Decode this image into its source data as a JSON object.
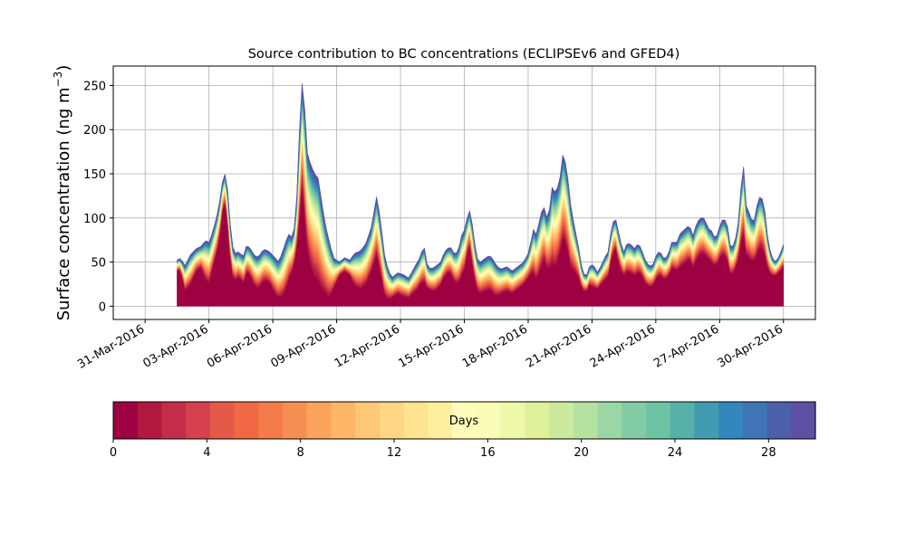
{
  "chart_data": {
    "type": "area",
    "title": "Source contribution to BC concentrations (ECLIPSEv6 and GFED4)",
    "ylabel": "Surface concentration (ng m⁻³)",
    "ylabel_parts": {
      "base": "Surface concentration (ng m",
      "superscript": "−3",
      "close": ")"
    },
    "xlabel": "",
    "x_range_days": [
      -1.5,
      31.5
    ],
    "x_start_day": 1.5,
    "x_end_day": 30.0,
    "x_step_days": 0.125,
    "ylim": [
      -15,
      272
    ],
    "yticks": [
      0,
      50,
      100,
      150,
      200,
      250
    ],
    "xticks": [
      {
        "day": 0,
        "label": "31-Mar-2016"
      },
      {
        "day": 3,
        "label": "03-Apr-2016"
      },
      {
        "day": 6,
        "label": "06-Apr-2016"
      },
      {
        "day": 9,
        "label": "09-Apr-2016"
      },
      {
        "day": 12,
        "label": "12-Apr-2016"
      },
      {
        "day": 15,
        "label": "15-Apr-2016"
      },
      {
        "day": 18,
        "label": "18-Apr-2016"
      },
      {
        "day": 21,
        "label": "21-Apr-2016"
      },
      {
        "day": 24,
        "label": "24-Apr-2016"
      },
      {
        "day": 27,
        "label": "27-Apr-2016"
      },
      {
        "day": 30,
        "label": "30-Apr-2016"
      }
    ],
    "grid": true,
    "total_keypoints": [
      [
        1.5,
        52
      ],
      [
        1.7,
        55
      ],
      [
        1.9,
        45
      ],
      [
        2.2,
        58
      ],
      [
        2.5,
        65
      ],
      [
        2.8,
        68
      ],
      [
        3.0,
        75
      ],
      [
        3.2,
        72
      ],
      [
        3.4,
        85
      ],
      [
        3.7,
        110
      ],
      [
        4.0,
        155
      ],
      [
        4.2,
        130
      ],
      [
        4.4,
        70
      ],
      [
        4.6,
        60
      ],
      [
        4.8,
        62
      ],
      [
        5.0,
        55
      ],
      [
        5.2,
        70
      ],
      [
        5.4,
        65
      ],
      [
        5.6,
        58
      ],
      [
        5.8,
        55
      ],
      [
        6.1,
        65
      ],
      [
        6.4,
        62
      ],
      [
        6.7,
        55
      ],
      [
        6.9,
        50
      ],
      [
        7.2,
        68
      ],
      [
        7.4,
        82
      ],
      [
        7.6,
        78
      ],
      [
        7.8,
        95
      ],
      [
        8.0,
        200
      ],
      [
        8.1,
        258
      ],
      [
        8.25,
        235
      ],
      [
        8.4,
        175
      ],
      [
        8.6,
        160
      ],
      [
        8.8,
        150
      ],
      [
        9.0,
        145
      ],
      [
        9.2,
        115
      ],
      [
        9.4,
        90
      ],
      [
        9.6,
        72
      ],
      [
        9.8,
        55
      ],
      [
        10.1,
        50
      ],
      [
        10.4,
        55
      ],
      [
        10.7,
        52
      ],
      [
        10.9,
        60
      ],
      [
        11.2,
        62
      ],
      [
        11.5,
        70
      ],
      [
        11.8,
        88
      ],
      [
        12.1,
        125
      ],
      [
        12.3,
        98
      ],
      [
        12.5,
        60
      ],
      [
        12.7,
        42
      ],
      [
        12.9,
        32
      ],
      [
        13.2,
        38
      ],
      [
        13.5,
        36
      ],
      [
        13.8,
        32
      ],
      [
        14.0,
        40
      ],
      [
        14.2,
        48
      ],
      [
        14.4,
        55
      ],
      [
        14.6,
        70
      ],
      [
        14.8,
        45
      ],
      [
        15.0,
        42
      ],
      [
        15.2,
        45
      ],
      [
        15.5,
        50
      ],
      [
        15.7,
        62
      ],
      [
        16.0,
        68
      ],
      [
        16.2,
        60
      ],
      [
        16.4,
        60
      ],
      [
        16.6,
        80
      ],
      [
        16.8,
        88
      ],
      [
        17.0,
        112
      ],
      [
        17.2,
        90
      ],
      [
        17.4,
        55
      ],
      [
        17.6,
        50
      ],
      [
        17.9,
        55
      ],
      [
        18.1,
        58
      ],
      [
        18.3,
        52
      ],
      [
        18.5,
        45
      ],
      [
        18.7,
        42
      ],
      [
        19.0,
        45
      ],
      [
        19.3,
        40
      ],
      [
        19.6,
        45
      ],
      [
        19.9,
        50
      ],
      [
        20.2,
        62
      ],
      [
        20.4,
        88
      ],
      [
        20.6,
        80
      ],
      [
        20.8,
        105
      ],
      [
        21.0,
        112
      ],
      [
        21.2,
        95
      ],
      [
        21.4,
        135
      ],
      [
        21.6,
        128
      ],
      [
        21.8,
        140
      ],
      [
        22.0,
        175
      ],
      [
        22.2,
        155
      ],
      [
        22.4,
        115
      ],
      [
        22.6,
        90
      ],
      [
        22.8,
        70
      ],
      [
        23.0,
        42
      ],
      [
        23.2,
        32
      ],
      [
        23.4,
        45
      ],
      [
        23.6,
        48
      ],
      [
        23.8,
        38
      ],
      [
        24.0,
        45
      ],
      [
        24.2,
        55
      ],
      [
        24.4,
        62
      ],
      [
        24.6,
        95
      ],
      [
        24.8,
        98
      ],
      [
        25.0,
        78
      ],
      [
        25.2,
        60
      ],
      [
        25.4,
        72
      ],
      [
        25.6,
        70
      ],
      [
        25.8,
        65
      ],
      [
        26.0,
        72
      ],
      [
        26.2,
        62
      ],
      [
        26.4,
        50
      ],
      [
        26.6,
        45
      ],
      [
        26.8,
        48
      ],
      [
        27.0,
        62
      ],
      [
        27.2,
        60
      ],
      [
        27.4,
        52
      ],
      [
        27.6,
        60
      ],
      [
        27.8,
        75
      ],
      [
        28.0,
        70
      ],
      [
        28.2,
        82
      ],
      [
        28.5,
        88
      ],
      [
        28.7,
        92
      ],
      [
        28.9,
        80
      ],
      [
        29.1,
        95
      ],
      [
        29.3,
        100
      ],
      [
        29.5,
        100
      ],
      [
        29.7,
        88
      ],
      [
        29.9,
        85
      ],
      [
        30.1,
        75
      ],
      [
        30.3,
        90
      ],
      [
        30.5,
        100
      ],
      [
        30.7,
        95
      ],
      [
        30.9,
        65
      ],
      [
        31.1,
        70
      ],
      [
        31.3,
        95
      ],
      [
        31.5,
        150
      ],
      [
        31.6,
        160
      ],
      [
        31.7,
        115
      ],
      [
        31.9,
        105
      ],
      [
        32.1,
        92
      ],
      [
        32.3,
        115
      ],
      [
        32.5,
        128
      ],
      [
        32.7,
        110
      ],
      [
        32.9,
        70
      ],
      [
        33.1,
        55
      ],
      [
        33.3,
        50
      ],
      [
        33.5,
        58
      ],
      [
        33.7,
        70
      ]
    ],
    "fresh_keypoints": [
      [
        1.5,
        40
      ],
      [
        1.7,
        42
      ],
      [
        1.9,
        18
      ],
      [
        2.2,
        25
      ],
      [
        2.5,
        40
      ],
      [
        2.8,
        45
      ],
      [
        3.0,
        30
      ],
      [
        3.2,
        28
      ],
      [
        3.4,
        45
      ],
      [
        3.7,
        70
      ],
      [
        4.0,
        125
      ],
      [
        4.2,
        90
      ],
      [
        4.4,
        35
      ],
      [
        4.6,
        30
      ],
      [
        4.8,
        35
      ],
      [
        5.0,
        25
      ],
      [
        5.2,
        40
      ],
      [
        5.4,
        35
      ],
      [
        5.6,
        25
      ],
      [
        5.8,
        20
      ],
      [
        6.1,
        30
      ],
      [
        6.4,
        28
      ],
      [
        6.7,
        15
      ],
      [
        6.9,
        10
      ],
      [
        7.2,
        15
      ],
      [
        7.4,
        30
      ],
      [
        7.6,
        40
      ],
      [
        7.8,
        55
      ],
      [
        8.0,
        100
      ],
      [
        8.1,
        150
      ],
      [
        8.25,
        110
      ],
      [
        8.4,
        70
      ],
      [
        8.6,
        45
      ],
      [
        8.8,
        35
      ],
      [
        9.0,
        30
      ],
      [
        9.2,
        20
      ],
      [
        9.4,
        15
      ],
      [
        9.6,
        10
      ],
      [
        9.8,
        20
      ],
      [
        10.1,
        35
      ],
      [
        10.4,
        40
      ],
      [
        10.7,
        35
      ],
      [
        10.9,
        25
      ],
      [
        11.2,
        20
      ],
      [
        11.5,
        25
      ],
      [
        11.8,
        40
      ],
      [
        12.1,
        60
      ],
      [
        12.3,
        40
      ],
      [
        12.5,
        15
      ],
      [
        12.7,
        8
      ],
      [
        12.9,
        10
      ],
      [
        13.2,
        15
      ],
      [
        13.5,
        12
      ],
      [
        13.8,
        10
      ],
      [
        14.0,
        15
      ],
      [
        14.2,
        18
      ],
      [
        14.4,
        25
      ],
      [
        14.6,
        30
      ],
      [
        14.8,
        20
      ],
      [
        15.0,
        18
      ],
      [
        15.2,
        18
      ],
      [
        15.5,
        25
      ],
      [
        15.7,
        35
      ],
      [
        16.0,
        40
      ],
      [
        16.2,
        30
      ],
      [
        16.4,
        25
      ],
      [
        16.6,
        35
      ],
      [
        16.8,
        45
      ],
      [
        17.0,
        75
      ],
      [
        17.2,
        45
      ],
      [
        17.4,
        20
      ],
      [
        17.6,
        15
      ],
      [
        17.9,
        18
      ],
      [
        18.1,
        20
      ],
      [
        18.3,
        15
      ],
      [
        18.5,
        12
      ],
      [
        18.7,
        15
      ],
      [
        19.0,
        18
      ],
      [
        19.3,
        15
      ],
      [
        19.6,
        20
      ],
      [
        19.9,
        25
      ],
      [
        20.2,
        35
      ],
      [
        20.4,
        40
      ],
      [
        20.6,
        30
      ],
      [
        20.8,
        45
      ],
      [
        21.0,
        55
      ],
      [
        21.2,
        40
      ],
      [
        21.4,
        50
      ],
      [
        21.6,
        45
      ],
      [
        21.8,
        60
      ],
      [
        22.0,
        80
      ],
      [
        22.2,
        70
      ],
      [
        22.4,
        45
      ],
      [
        22.6,
        40
      ],
      [
        22.8,
        35
      ],
      [
        23.0,
        20
      ],
      [
        23.2,
        15
      ],
      [
        23.4,
        25
      ],
      [
        23.6,
        22
      ],
      [
        23.8,
        20
      ],
      [
        24.0,
        25
      ],
      [
        24.2,
        30
      ],
      [
        24.4,
        35
      ],
      [
        24.6,
        60
      ],
      [
        24.8,
        65
      ],
      [
        25.0,
        45
      ],
      [
        25.2,
        35
      ],
      [
        25.4,
        40
      ],
      [
        25.6,
        38
      ],
      [
        25.8,
        35
      ],
      [
        26.0,
        40
      ],
      [
        26.2,
        35
      ],
      [
        26.4,
        25
      ],
      [
        26.6,
        22
      ],
      [
        26.8,
        25
      ],
      [
        27.0,
        35
      ],
      [
        27.2,
        35
      ],
      [
        27.4,
        30
      ],
      [
        27.6,
        35
      ],
      [
        27.8,
        45
      ],
      [
        28.0,
        40
      ],
      [
        28.2,
        45
      ],
      [
        28.5,
        50
      ],
      [
        28.7,
        55
      ],
      [
        28.9,
        45
      ],
      [
        29.1,
        55
      ],
      [
        29.3,
        60
      ],
      [
        29.5,
        60
      ],
      [
        29.7,
        55
      ],
      [
        29.9,
        50
      ],
      [
        30.1,
        45
      ],
      [
        30.3,
        55
      ],
      [
        30.5,
        60
      ],
      [
        30.7,
        55
      ],
      [
        30.9,
        35
      ],
      [
        31.1,
        40
      ],
      [
        31.3,
        55
      ],
      [
        31.5,
        80
      ],
      [
        31.6,
        85
      ],
      [
        31.7,
        60
      ],
      [
        31.9,
        55
      ],
      [
        32.1,
        50
      ],
      [
        32.3,
        60
      ],
      [
        32.5,
        70
      ],
      [
        32.7,
        60
      ],
      [
        32.9,
        40
      ],
      [
        33.1,
        35
      ],
      [
        33.3,
        35
      ],
      [
        33.5,
        40
      ],
      [
        33.7,
        45
      ]
    ],
    "colorbar": {
      "label": "Days",
      "min": 0,
      "max": 30,
      "ticks": [
        0,
        4,
        8,
        12,
        16,
        20,
        24,
        28
      ],
      "colors": [
        "#9e0142",
        "#b2183f",
        "#c42d4a",
        "#d6404e",
        "#e45a49",
        "#f06944",
        "#f67b4a",
        "#f88f52",
        "#fba35b",
        "#fdb567",
        "#fdc776",
        "#fed684",
        "#fee391",
        "#feef9f",
        "#fffcba",
        "#f8fcb6",
        "#eef8a8",
        "#dff299",
        "#ccea9d",
        "#b5e1a1",
        "#9cd6a4",
        "#82cba5",
        "#6dc4a4",
        "#57b0aa",
        "#419bb1",
        "#3288bd",
        "#3f75b6",
        "#4c61aa",
        "#5e4fa2"
      ]
    }
  }
}
